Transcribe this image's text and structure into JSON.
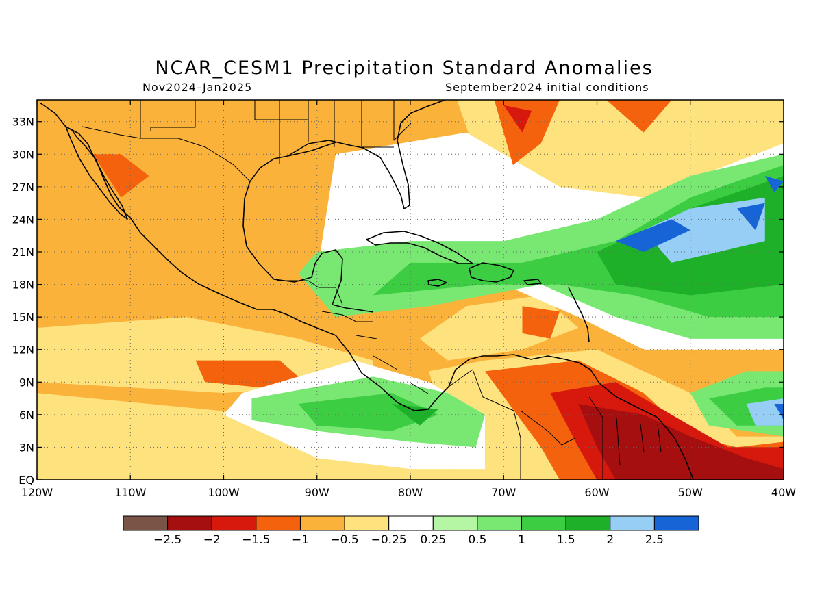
{
  "title": "NCAR_CESM1 Precipitation Standard Anomalies",
  "subtitle_left": "Nov2024–Jan2025",
  "subtitle_right": "September2024 initial conditions",
  "map": {
    "lon_min": -120,
    "lon_max": -40,
    "lat_min": 0,
    "lat_max": 35,
    "lat_ticks": [
      {
        "value": 33,
        "label": "33N"
      },
      {
        "value": 30,
        "label": "30N"
      },
      {
        "value": 27,
        "label": "27N"
      },
      {
        "value": 24,
        "label": "24N"
      },
      {
        "value": 21,
        "label": "21N"
      },
      {
        "value": 18,
        "label": "18N"
      },
      {
        "value": 15,
        "label": "15N"
      },
      {
        "value": 12,
        "label": "12N"
      },
      {
        "value": 9,
        "label": "9N"
      },
      {
        "value": 6,
        "label": "6N"
      },
      {
        "value": 3,
        "label": "3N"
      },
      {
        "value": 0,
        "label": "EQ"
      }
    ],
    "lon_ticks": [
      {
        "value": -120,
        "label": "120W"
      },
      {
        "value": -110,
        "label": "110W"
      },
      {
        "value": -100,
        "label": "100W"
      },
      {
        "value": -90,
        "label": "90W"
      },
      {
        "value": -80,
        "label": "80W"
      },
      {
        "value": -70,
        "label": "70W"
      },
      {
        "value": -60,
        "label": "60W"
      },
      {
        "value": -50,
        "label": "50W"
      },
      {
        "value": -40,
        "label": "40W"
      }
    ]
  },
  "colorbar": {
    "colors": [
      "#7a5447",
      "#a50f0f",
      "#d7190d",
      "#f5620d",
      "#fbb23b",
      "#fde27d",
      "#ffffff",
      "#b4f6a4",
      "#78e873",
      "#3ccd42",
      "#1fb02a",
      "#96cef6",
      "#1664d6"
    ],
    "labels": [
      "−2.5",
      "−2",
      "−1.5",
      "−1",
      "−0.5",
      "−0.25",
      "0.25",
      "0.5",
      "1",
      "1.5",
      "2",
      "2.5"
    ]
  },
  "chart_data": {
    "type": "heatmap",
    "title": "NCAR_CESM1 Precipitation Standard Anomalies",
    "subtitle": [
      "Nov2024–Jan2025",
      "September2024 initial conditions"
    ],
    "x_range": [
      -120,
      -40
    ],
    "y_range": [
      0,
      35
    ],
    "levels": [
      -2.5,
      -2,
      -1.5,
      -1,
      -0.5,
      -0.25,
      0.25,
      0.5,
      1,
      1.5,
      2,
      2.5
    ],
    "regions": [
      {
        "level": -0.5,
        "poly": [
          [
            -120,
            35
          ],
          [
            -75,
            35
          ],
          [
            -73,
            30
          ],
          [
            -70,
            25
          ],
          [
            -60,
            24
          ],
          [
            -50,
            26
          ],
          [
            -45,
            29
          ],
          [
            -40,
            30
          ],
          [
            -40,
            35
          ]
        ]
      },
      {
        "level": -0.5,
        "poly": [
          [
            -120,
            14
          ],
          [
            -104,
            15
          ],
          [
            -92,
            13
          ],
          [
            -84,
            11
          ],
          [
            -84,
            9
          ],
          [
            -100,
            8
          ],
          [
            -120,
            9
          ]
        ]
      },
      {
        "level": -0.5,
        "poly": [
          [
            -120,
            8
          ],
          [
            -96,
            6
          ],
          [
            -86,
            5
          ],
          [
            -78,
            4
          ],
          [
            -76,
            2
          ],
          [
            -74,
            0
          ],
          [
            -120,
            0
          ]
        ]
      },
      {
        "level": -0.5,
        "poly": [
          [
            -78,
            10
          ],
          [
            -72,
            11
          ],
          [
            -60,
            12
          ],
          [
            -50,
            8
          ],
          [
            -45,
            4
          ],
          [
            -40,
            4
          ],
          [
            -40,
            0
          ],
          [
            -75,
            0
          ]
        ]
      },
      {
        "level": -0.5,
        "poly": [
          [
            -79,
            13
          ],
          [
            -74,
            16
          ],
          [
            -66,
            17
          ],
          [
            -62,
            14
          ],
          [
            -68,
            12
          ],
          [
            -76,
            11
          ]
        ]
      },
      {
        "level": 0.25,
        "poly": [
          [
            -88,
            30
          ],
          [
            -74,
            32
          ],
          [
            -70,
            30
          ],
          [
            -64,
            27
          ],
          [
            -55,
            26
          ],
          [
            -46,
            29
          ],
          [
            -40,
            31
          ],
          [
            -40,
            12
          ],
          [
            -55,
            12
          ],
          [
            -62,
            15
          ],
          [
            -70,
            18
          ],
          [
            -80,
            21
          ],
          [
            -90,
            19
          ]
        ]
      },
      {
        "level": 0.25,
        "poly": [
          [
            -98,
            8
          ],
          [
            -86,
            11
          ],
          [
            -78,
            9
          ],
          [
            -72,
            6
          ],
          [
            -72,
            1
          ],
          [
            -80,
            1
          ],
          [
            -90,
            2
          ],
          [
            -100,
            6
          ]
        ]
      },
      {
        "level": 0.5,
        "poly": [
          [
            -90,
            21
          ],
          [
            -80,
            22
          ],
          [
            -70,
            22
          ],
          [
            -60,
            24
          ],
          [
            -50,
            28
          ],
          [
            -40,
            30
          ],
          [
            -40,
            13
          ],
          [
            -50,
            13
          ],
          [
            -58,
            15
          ],
          [
            -66,
            18
          ],
          [
            -78,
            16
          ],
          [
            -88,
            15
          ],
          [
            -92,
            19
          ]
        ]
      },
      {
        "level": 0.5,
        "poly": [
          [
            -97,
            7.5
          ],
          [
            -84,
            9.5
          ],
          [
            -76,
            8
          ],
          [
            -72,
            6
          ],
          [
            -73,
            3
          ],
          [
            -80,
            3.5
          ],
          [
            -90,
            4.5
          ],
          [
            -97,
            5.5
          ]
        ]
      },
      {
        "level": 0.5,
        "poly": [
          [
            -50,
            8
          ],
          [
            -44,
            10
          ],
          [
            -40,
            10
          ],
          [
            -40,
            4
          ],
          [
            -48,
            5
          ]
        ]
      },
      {
        "level": 1.0,
        "poly": [
          [
            -80,
            20
          ],
          [
            -68,
            20
          ],
          [
            -58,
            22
          ],
          [
            -50,
            26
          ],
          [
            -40,
            29
          ],
          [
            -40,
            15
          ],
          [
            -48,
            15
          ],
          [
            -56,
            17
          ],
          [
            -64,
            18
          ],
          [
            -72,
            18
          ],
          [
            -84,
            17
          ]
        ]
      },
      {
        "level": 1.0,
        "poly": [
          [
            -92,
            7
          ],
          [
            -82,
            8
          ],
          [
            -77,
            6
          ],
          [
            -82,
            4.5
          ],
          [
            -90,
            5
          ]
        ]
      },
      {
        "level": 1.0,
        "poly": [
          [
            -48,
            7.5
          ],
          [
            -42,
            8.5
          ],
          [
            -40,
            8.5
          ],
          [
            -40,
            5
          ],
          [
            -45,
            5
          ]
        ]
      },
      {
        "level": 1.5,
        "poly": [
          [
            -60,
            21
          ],
          [
            -50,
            25
          ],
          [
            -40,
            28
          ],
          [
            -40,
            18
          ],
          [
            -50,
            17
          ],
          [
            -58,
            18
          ]
        ]
      },
      {
        "level": 1.5,
        "poly": [
          [
            -82,
            7
          ],
          [
            -77,
            6.5
          ],
          [
            -79,
            5
          ]
        ]
      },
      {
        "level": 2.0,
        "poly": [
          [
            -55,
            23
          ],
          [
            -50,
            25
          ],
          [
            -42,
            26
          ],
          [
            -42,
            22
          ],
          [
            -52,
            20
          ]
        ]
      },
      {
        "level": 2.0,
        "poly": [
          [
            -44,
            7
          ],
          [
            -40,
            7.5
          ],
          [
            -40,
            5
          ],
          [
            -43,
            5
          ]
        ]
      },
      {
        "level": 2.5,
        "poly": [
          [
            -58,
            22
          ],
          [
            -52,
            24
          ],
          [
            -50,
            23
          ],
          [
            -55,
            21
          ]
        ]
      },
      {
        "level": 2.5,
        "poly": [
          [
            -45,
            25
          ],
          [
            -42,
            25.5
          ],
          [
            -43,
            23
          ]
        ]
      },
      {
        "level": 2.5,
        "poly": [
          [
            -42,
            28
          ],
          [
            -40,
            27.5
          ],
          [
            -41,
            26.5
          ]
        ]
      },
      {
        "level": 2.5,
        "poly": [
          [
            -41,
            7
          ],
          [
            -40,
            7
          ],
          [
            -40,
            5.5
          ]
        ]
      },
      {
        "level": -1.0,
        "poly": [
          [
            -71,
            35
          ],
          [
            -64,
            35
          ],
          [
            -66,
            31
          ],
          [
            -69,
            29
          ]
        ]
      },
      {
        "level": -1.0,
        "poly": [
          [
            -59,
            35
          ],
          [
            -52,
            35
          ],
          [
            -55,
            32
          ]
        ]
      },
      {
        "level": -1.0,
        "poly": [
          [
            -114,
            30
          ],
          [
            -111,
            30
          ],
          [
            -108,
            28
          ],
          [
            -111,
            26
          ]
        ]
      },
      {
        "level": -1.0,
        "poly": [
          [
            -103,
            11
          ],
          [
            -94,
            11
          ],
          [
            -92,
            9.5
          ],
          [
            -96,
            8.5
          ],
          [
            -102,
            9
          ]
        ]
      },
      {
        "level": -1.0,
        "poly": [
          [
            -68,
            16
          ],
          [
            -64,
            15.5
          ],
          [
            -65,
            13
          ],
          [
            -68,
            13.5
          ]
        ]
      },
      {
        "level": -1.0,
        "poly": [
          [
            -72,
            10
          ],
          [
            -62,
            11
          ],
          [
            -55,
            8
          ],
          [
            -50,
            4
          ],
          [
            -45,
            3
          ],
          [
            -40,
            3.5
          ],
          [
            -40,
            0
          ],
          [
            -64,
            0
          ],
          [
            -66,
            3
          ]
        ]
      },
      {
        "level": -1.5,
        "poly": [
          [
            -70,
            34.5
          ],
          [
            -67,
            34
          ],
          [
            -68,
            32
          ]
        ]
      },
      {
        "level": -1.5,
        "poly": [
          [
            -65,
            8
          ],
          [
            -58,
            9
          ],
          [
            -52,
            6
          ],
          [
            -46,
            3
          ],
          [
            -40,
            3
          ],
          [
            -40,
            0
          ],
          [
            -60,
            0
          ],
          [
            -62,
            3
          ]
        ]
      },
      {
        "level": -2.0,
        "poly": [
          [
            -62,
            7
          ],
          [
            -55,
            6
          ],
          [
            -50,
            4
          ],
          [
            -44,
            2
          ],
          [
            -40,
            1
          ],
          [
            -40,
            0
          ],
          [
            -58,
            0
          ],
          [
            -60,
            3
          ]
        ]
      }
    ]
  }
}
